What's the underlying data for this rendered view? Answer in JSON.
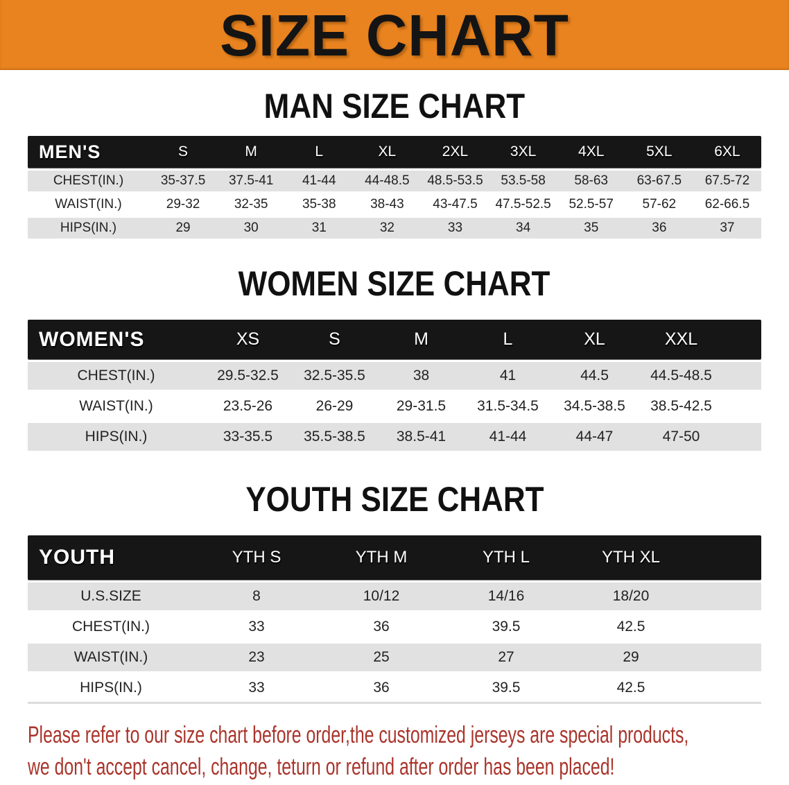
{
  "banner": {
    "title": "SIZE CHART"
  },
  "sections": [
    {
      "heading": "MAN SIZE CHART",
      "table": {
        "label": "MEN'S",
        "columns": [
          "S",
          "M",
          "L",
          "XL",
          "2XL",
          "3XL",
          "4XL",
          "5XL",
          "6XL"
        ],
        "rows": [
          {
            "label": "CHEST(IN.)",
            "values": [
              "35-37.5",
              "37.5-41",
              "41-44",
              "44-48.5",
              "48.5-53.5",
              "53.5-58",
              "58-63",
              "63-67.5",
              "67.5-72"
            ]
          },
          {
            "label": "WAIST(IN.)",
            "values": [
              "29-32",
              "32-35",
              "35-38",
              "38-43",
              "43-47.5",
              "47.5-52.5",
              "52.5-57",
              "57-62",
              "62-66.5"
            ]
          },
          {
            "label": "HIPS(IN.)",
            "values": [
              "29",
              "30",
              "31",
              "32",
              "33",
              "34",
              "35",
              "36",
              "37"
            ]
          }
        ]
      }
    },
    {
      "heading": "WOMEN SIZE CHART",
      "table": {
        "label": "WOMEN'S",
        "columns": [
          "XS",
          "S",
          "M",
          "L",
          "XL",
          "XXL"
        ],
        "rows": [
          {
            "label": "CHEST(IN.)",
            "values": [
              "29.5-32.5",
              "32.5-35.5",
              "38",
              "41",
              "44.5",
              "44.5-48.5"
            ]
          },
          {
            "label": "WAIST(IN.)",
            "values": [
              "23.5-26",
              "26-29",
              "29-31.5",
              "31.5-34.5",
              "34.5-38.5",
              "38.5-42.5"
            ]
          },
          {
            "label": "HIPS(IN.)",
            "values": [
              "33-35.5",
              "35.5-38.5",
              "38.5-41",
              "41-44",
              "44-47",
              "47-50"
            ]
          }
        ]
      }
    },
    {
      "heading": "YOUTH SIZE CHART",
      "table": {
        "label": "YOUTH",
        "columns": [
          "YTH S",
          "YTH M",
          "YTH L",
          "YTH XL"
        ],
        "rows": [
          {
            "label": "U.S.SIZE",
            "values": [
              "8",
              "10/12",
              "14/16",
              "18/20"
            ]
          },
          {
            "label": "CHEST(IN.)",
            "values": [
              "33",
              "36",
              "39.5",
              "42.5"
            ]
          },
          {
            "label": "WAIST(IN.)",
            "values": [
              "23",
              "25",
              "27",
              "29"
            ]
          },
          {
            "label": "HIPS(IN.)",
            "values": [
              "33",
              "36",
              "39.5",
              "42.5"
            ]
          }
        ]
      }
    }
  ],
  "footer": {
    "line1": "Please refer to our size chart before order,the customized jerseys are special products,",
    "line2": "we don't accept cancel, change, teturn or refund after order has been placed!"
  },
  "colors": {
    "banner_bg": "#E8831F",
    "header_bg": "#161616",
    "row_band": "#e1e1e1",
    "footer_text": "#AA342B"
  }
}
